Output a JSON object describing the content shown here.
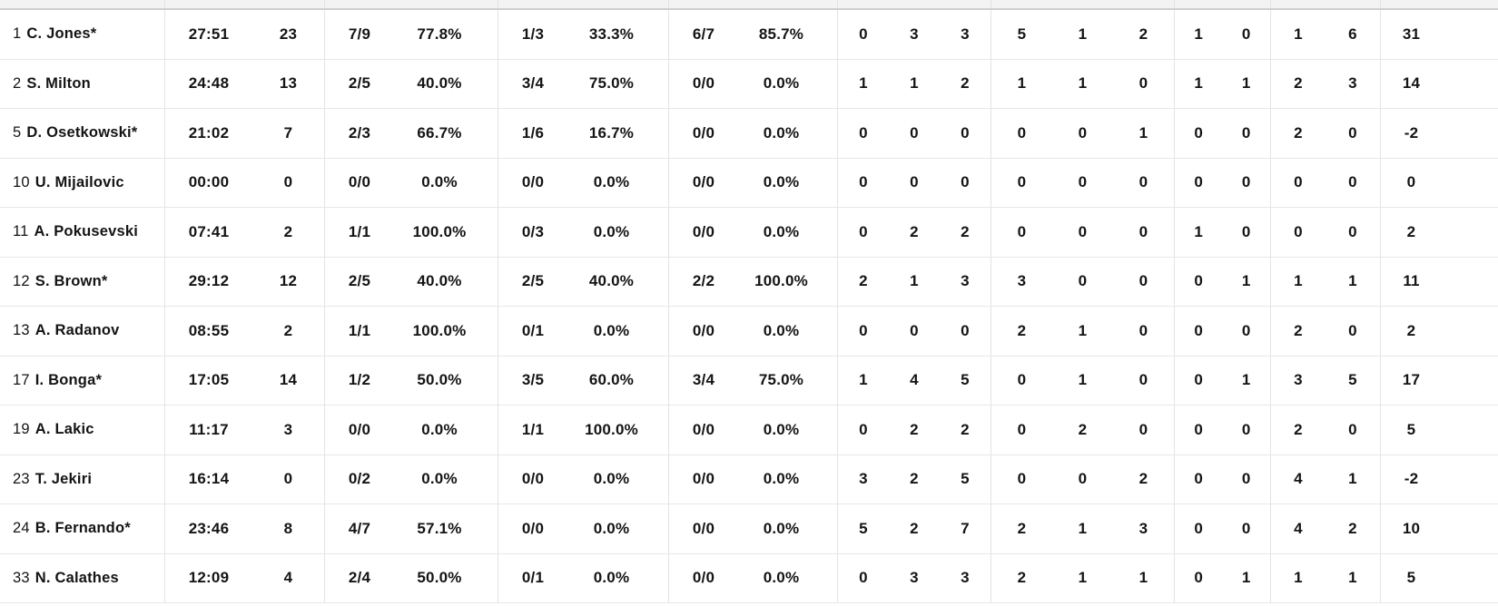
{
  "colors": {
    "text": "#141414",
    "header_bg": "#f3f3f4",
    "header_border": "#cfcfcf",
    "row_border": "#e7e7e7",
    "divider": "#e3e3e3"
  },
  "table": {
    "players": [
      {
        "number": "1",
        "name": "C. Jones*",
        "min": "27:51",
        "pts": "23",
        "fg2": "7/9",
        "fg2_pct": "77.8%",
        "fg3": "1/3",
        "fg3_pct": "33.3%",
        "ft": "6/7",
        "ft_pct": "85.7%",
        "oreb": "0",
        "dreb": "3",
        "treb": "3",
        "ast": "5",
        "stl": "1",
        "to": "2",
        "fv": "1",
        "ag": "0",
        "cm": "1",
        "rv": "6",
        "pir": "31"
      },
      {
        "number": "2",
        "name": "S. Milton",
        "min": "24:48",
        "pts": "13",
        "fg2": "2/5",
        "fg2_pct": "40.0%",
        "fg3": "3/4",
        "fg3_pct": "75.0%",
        "ft": "0/0",
        "ft_pct": "0.0%",
        "oreb": "1",
        "dreb": "1",
        "treb": "2",
        "ast": "1",
        "stl": "1",
        "to": "0",
        "fv": "1",
        "ag": "1",
        "cm": "2",
        "rv": "3",
        "pir": "14"
      },
      {
        "number": "5",
        "name": "D. Osetkowski*",
        "min": "21:02",
        "pts": "7",
        "fg2": "2/3",
        "fg2_pct": "66.7%",
        "fg3": "1/6",
        "fg3_pct": "16.7%",
        "ft": "0/0",
        "ft_pct": "0.0%",
        "oreb": "0",
        "dreb": "0",
        "treb": "0",
        "ast": "0",
        "stl": "0",
        "to": "1",
        "fv": "0",
        "ag": "0",
        "cm": "2",
        "rv": "0",
        "pir": "-2"
      },
      {
        "number": "10",
        "name": "U. Mijailovic",
        "min": "00:00",
        "pts": "0",
        "fg2": "0/0",
        "fg2_pct": "0.0%",
        "fg3": "0/0",
        "fg3_pct": "0.0%",
        "ft": "0/0",
        "ft_pct": "0.0%",
        "oreb": "0",
        "dreb": "0",
        "treb": "0",
        "ast": "0",
        "stl": "0",
        "to": "0",
        "fv": "0",
        "ag": "0",
        "cm": "0",
        "rv": "0",
        "pir": "0"
      },
      {
        "number": "11",
        "name": "A. Pokusevski",
        "min": "07:41",
        "pts": "2",
        "fg2": "1/1",
        "fg2_pct": "100.0%",
        "fg3": "0/3",
        "fg3_pct": "0.0%",
        "ft": "0/0",
        "ft_pct": "0.0%",
        "oreb": "0",
        "dreb": "2",
        "treb": "2",
        "ast": "0",
        "stl": "0",
        "to": "0",
        "fv": "1",
        "ag": "0",
        "cm": "0",
        "rv": "0",
        "pir": "2"
      },
      {
        "number": "12",
        "name": "S. Brown*",
        "min": "29:12",
        "pts": "12",
        "fg2": "2/5",
        "fg2_pct": "40.0%",
        "fg3": "2/5",
        "fg3_pct": "40.0%",
        "ft": "2/2",
        "ft_pct": "100.0%",
        "oreb": "2",
        "dreb": "1",
        "treb": "3",
        "ast": "3",
        "stl": "0",
        "to": "0",
        "fv": "0",
        "ag": "1",
        "cm": "1",
        "rv": "1",
        "pir": "11"
      },
      {
        "number": "13",
        "name": "A. Radanov",
        "min": "08:55",
        "pts": "2",
        "fg2": "1/1",
        "fg2_pct": "100.0%",
        "fg3": "0/1",
        "fg3_pct": "0.0%",
        "ft": "0/0",
        "ft_pct": "0.0%",
        "oreb": "0",
        "dreb": "0",
        "treb": "0",
        "ast": "2",
        "stl": "1",
        "to": "0",
        "fv": "0",
        "ag": "0",
        "cm": "2",
        "rv": "0",
        "pir": "2"
      },
      {
        "number": "17",
        "name": "I. Bonga*",
        "min": "17:05",
        "pts": "14",
        "fg2": "1/2",
        "fg2_pct": "50.0%",
        "fg3": "3/5",
        "fg3_pct": "60.0%",
        "ft": "3/4",
        "ft_pct": "75.0%",
        "oreb": "1",
        "dreb": "4",
        "treb": "5",
        "ast": "0",
        "stl": "1",
        "to": "0",
        "fv": "0",
        "ag": "1",
        "cm": "3",
        "rv": "5",
        "pir": "17"
      },
      {
        "number": "19",
        "name": "A. Lakic",
        "min": "11:17",
        "pts": "3",
        "fg2": "0/0",
        "fg2_pct": "0.0%",
        "fg3": "1/1",
        "fg3_pct": "100.0%",
        "ft": "0/0",
        "ft_pct": "0.0%",
        "oreb": "0",
        "dreb": "2",
        "treb": "2",
        "ast": "0",
        "stl": "2",
        "to": "0",
        "fv": "0",
        "ag": "0",
        "cm": "2",
        "rv": "0",
        "pir": "5"
      },
      {
        "number": "23",
        "name": "T. Jekiri",
        "min": "16:14",
        "pts": "0",
        "fg2": "0/2",
        "fg2_pct": "0.0%",
        "fg3": "0/0",
        "fg3_pct": "0.0%",
        "ft": "0/0",
        "ft_pct": "0.0%",
        "oreb": "3",
        "dreb": "2",
        "treb": "5",
        "ast": "0",
        "stl": "0",
        "to": "2",
        "fv": "0",
        "ag": "0",
        "cm": "4",
        "rv": "1",
        "pir": "-2"
      },
      {
        "number": "24",
        "name": "B. Fernando*",
        "min": "23:46",
        "pts": "8",
        "fg2": "4/7",
        "fg2_pct": "57.1%",
        "fg3": "0/0",
        "fg3_pct": "0.0%",
        "ft": "0/0",
        "ft_pct": "0.0%",
        "oreb": "5",
        "dreb": "2",
        "treb": "7",
        "ast": "2",
        "stl": "1",
        "to": "3",
        "fv": "0",
        "ag": "0",
        "cm": "4",
        "rv": "2",
        "pir": "10"
      },
      {
        "number": "33",
        "name": "N. Calathes",
        "min": "12:09",
        "pts": "4",
        "fg2": "2/4",
        "fg2_pct": "50.0%",
        "fg3": "0/1",
        "fg3_pct": "0.0%",
        "ft": "0/0",
        "ft_pct": "0.0%",
        "oreb": "0",
        "dreb": "3",
        "treb": "3",
        "ast": "2",
        "stl": "1",
        "to": "1",
        "fv": "0",
        "ag": "1",
        "cm": "1",
        "rv": "1",
        "pir": "5"
      }
    ]
  }
}
